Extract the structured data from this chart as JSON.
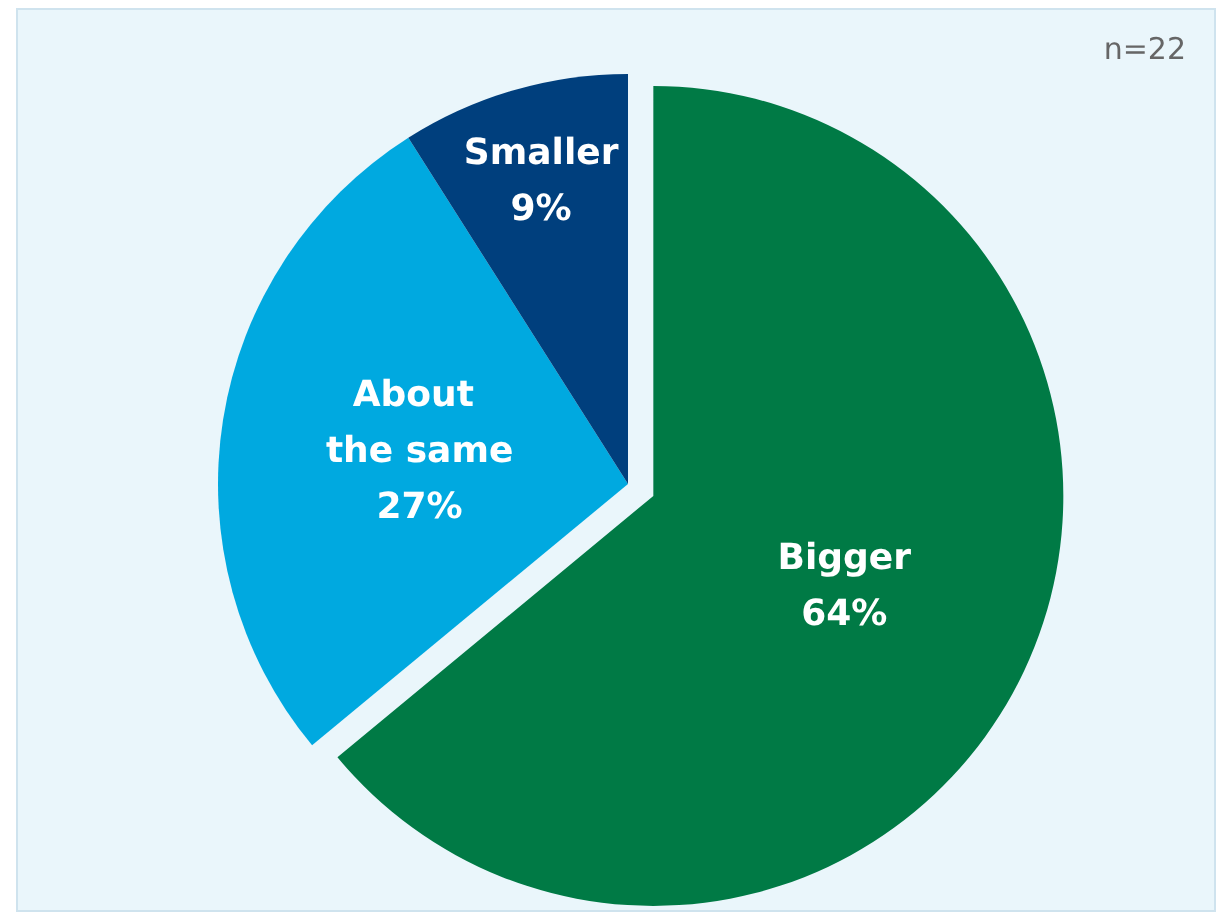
{
  "chart_data": {
    "type": "pie",
    "categories": [
      "Bigger",
      "About the same",
      "Smaller"
    ],
    "values": [
      64,
      27,
      9
    ],
    "colors": [
      "#007a45",
      "#00a9e0",
      "#003f7d"
    ],
    "value_labels": [
      "64%",
      "27%",
      "9%"
    ],
    "legend": false,
    "annotations": [
      "n=22"
    ]
  }
}
